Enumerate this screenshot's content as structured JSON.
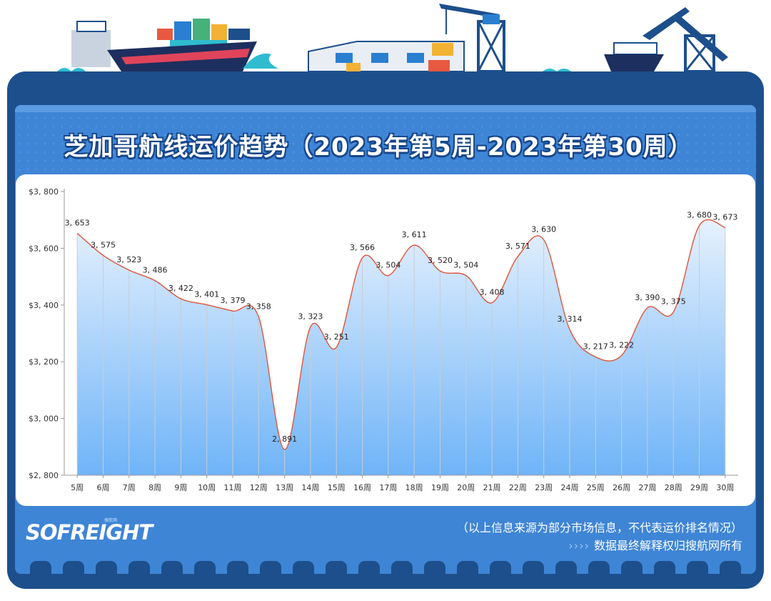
{
  "header": {
    "title": "芝加哥航线运价趋势（2023年第5周-2023年第30周）"
  },
  "chart_data": {
    "type": "area",
    "title": "芝加哥航线运价趋势（2023年第5周-2023年第30周）",
    "categories": [
      "5周",
      "6周",
      "7周",
      "8周",
      "9周",
      "10周",
      "11周",
      "12周",
      "13周",
      "14周",
      "15周",
      "16周",
      "17周",
      "18周",
      "19周",
      "20周",
      "21周",
      "22周",
      "23周",
      "24周",
      "25周",
      "26周",
      "27周",
      "28周",
      "29周",
      "30周"
    ],
    "values": [
      3653,
      3575,
      3523,
      3486,
      3422,
      3401,
      3379,
      3358,
      2891,
      3323,
      3251,
      3566,
      3504,
      3611,
      3520,
      3504,
      3408,
      3571,
      3630,
      3314,
      3217,
      3222,
      3390,
      3375,
      3680,
      3673
    ],
    "data_labels": [
      "3, 653",
      "3, 575",
      "3, 523",
      "3, 486",
      "3, 422",
      "3, 401",
      "3, 379",
      "3, 358",
      "2, 891",
      "3, 323",
      "3, 251",
      "3, 566",
      "3, 504",
      "3, 611",
      "3, 520",
      "3, 504",
      "3, 408",
      "3, 571",
      "3, 630",
      "3, 314",
      "3, 217",
      "3, 222",
      "3, 390",
      "3, 375",
      "3, 680",
      "3, 673"
    ],
    "ylim": [
      2800,
      3800
    ],
    "yticks": [
      2800,
      3000,
      3200,
      3400,
      3600,
      3800
    ],
    "ytick_labels": [
      "$2, 800",
      "$3, 000",
      "$3, 200",
      "$3, 400",
      "$3, 600",
      "$3, 800"
    ],
    "xlabel": "",
    "ylabel": "",
    "grid": "vertical lines at each category",
    "legend": "none",
    "colors": {
      "line": "#e0533c",
      "fill_top": "#e6f1fd",
      "fill_bottom": "#6fb4f8",
      "dropline": "#c8ccd4"
    }
  },
  "footer": {
    "logo": "SOFREIGHT",
    "logo_sub": "搜航网",
    "disclaimer": "（以上信息来源为部分市场信息，不代表运价排名情况）",
    "arrows": "››››",
    "copyright": "数据最终解释权归搜航网所有"
  },
  "colors": {
    "frame": "#1d4f8c",
    "inner": "#3e85d6",
    "panel": "#ffffff"
  }
}
